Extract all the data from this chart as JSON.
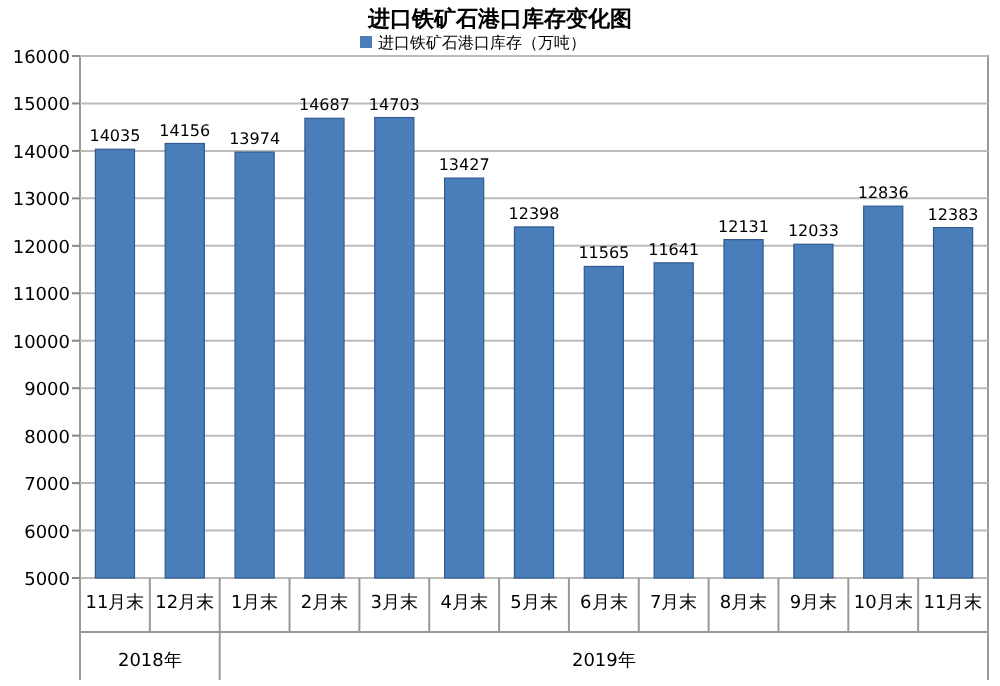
{
  "chart_data": {
    "type": "bar",
    "title": "进口铁矿石港口库存变化图",
    "categories": [
      "11月末",
      "12月末",
      "1月末",
      "2月末",
      "3月末",
      "4月末",
      "5月末",
      "6月末",
      "7月末",
      "8月末",
      "9月末",
      "10月末",
      "11月末"
    ],
    "series": [
      {
        "name": "进口铁矿石港口库存（万吨）",
        "color": "#4a7ebb",
        "values": [
          14035,
          14156,
          13974,
          14687,
          14703,
          13427,
          12398,
          11565,
          11641,
          12131,
          12033,
          12836,
          12383
        ]
      }
    ],
    "ylim": [
      5000,
      16000
    ],
    "yticks": [
      5000,
      6000,
      7000,
      8000,
      9000,
      10000,
      11000,
      12000,
      13000,
      14000,
      15000,
      16000
    ],
    "grid": "y",
    "legend": "top",
    "data_labels": true,
    "annotations": [
      "2018年",
      "2019年"
    ]
  }
}
